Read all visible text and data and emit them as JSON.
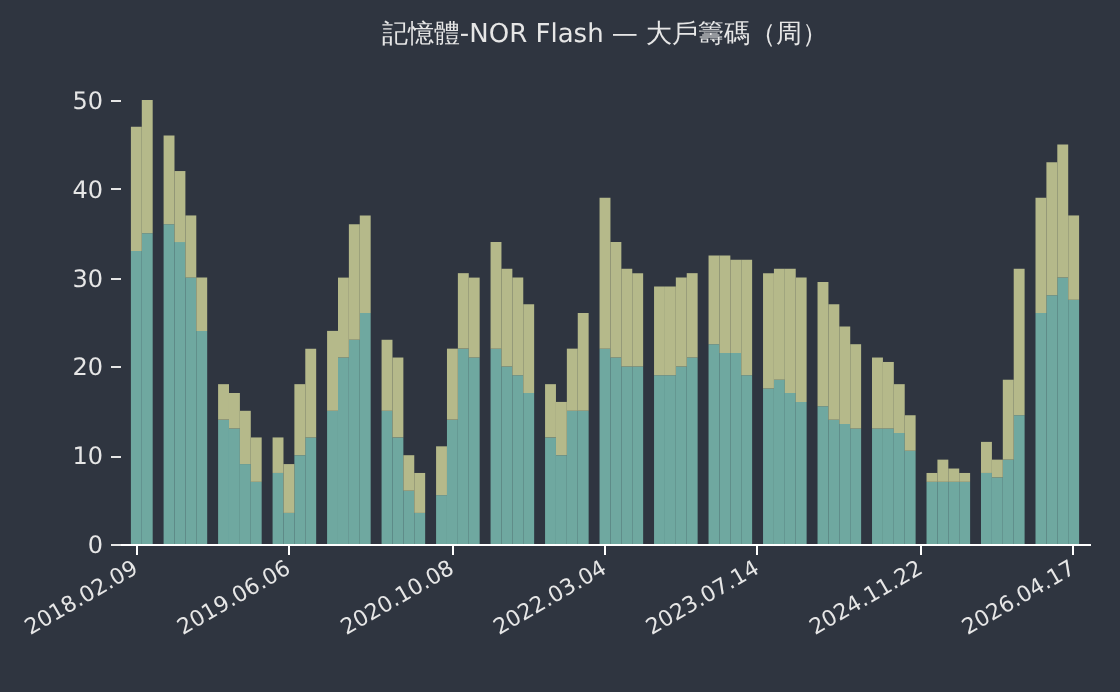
{
  "chart_data": {
    "type": "bar",
    "title": "記憶體-NOR Flash — 大戶籌碼（周）",
    "stacked": true,
    "categories": [
      "2018.02.09",
      null,
      null,
      null,
      null,
      null,
      null,
      null,
      null,
      null,
      null,
      null,
      null,
      null,
      "2019.06.06",
      null,
      null,
      null,
      null,
      null,
      null,
      null,
      null,
      null,
      null,
      null,
      null,
      null,
      null,
      "2020.10.08",
      null,
      null,
      null,
      null,
      null,
      null,
      null,
      null,
      null,
      null,
      null,
      null,
      null,
      "2022.03.04",
      null,
      null,
      null,
      null,
      null,
      null,
      null,
      null,
      null,
      null,
      null,
      null,
      null,
      "2023.07.14",
      null,
      null,
      null,
      null,
      null,
      null,
      null,
      null,
      null,
      null,
      null,
      null,
      null,
      null,
      "2024.11.22",
      null,
      null,
      null,
      null,
      null,
      null,
      null,
      null,
      null,
      null,
      null,
      null,
      null,
      "2026.04.17"
    ],
    "series": [
      {
        "color": "#6fa8a0",
        "values": [
          33,
          35,
          null,
          36,
          34,
          30,
          24,
          null,
          14,
          13,
          9,
          7,
          null,
          8,
          3.5,
          10,
          12,
          null,
          15,
          21,
          23,
          26,
          null,
          15,
          12,
          6,
          3.5,
          null,
          5.5,
          14,
          22,
          21,
          null,
          22,
          20,
          19,
          17,
          null,
          12,
          10,
          15,
          15,
          null,
          22,
          21,
          20,
          20,
          null,
          19,
          19,
          20,
          21,
          null,
          22.5,
          21.5,
          21.5,
          19,
          null,
          17.5,
          18.5,
          17,
          16,
          null,
          15.5,
          14,
          13.5,
          13,
          null,
          13,
          13,
          12.5,
          10.5,
          null,
          7,
          7,
          7,
          7,
          null,
          8,
          7.5,
          9.5,
          14.5,
          null,
          26,
          28,
          30,
          27.5
        ]
      },
      {
        "color": "#b5b98a",
        "values": [
          14,
          15,
          null,
          10,
          8,
          7,
          6,
          null,
          4,
          4,
          6,
          5,
          null,
          4,
          5.5,
          8,
          10,
          null,
          9,
          9,
          13,
          11,
          null,
          8,
          9,
          4,
          4.5,
          null,
          5.5,
          8,
          8.5,
          9,
          null,
          12,
          11,
          11,
          10,
          null,
          6,
          6,
          7,
          11,
          null,
          17,
          13,
          11,
          10.5,
          null,
          10,
          10,
          10,
          9.5,
          null,
          10,
          11,
          10.5,
          13,
          null,
          13,
          12.5,
          14,
          14,
          null,
          14,
          13,
          11,
          9.5,
          null,
          8,
          7.5,
          5.5,
          4,
          null,
          1,
          2.5,
          1.5,
          1,
          null,
          3.5,
          2,
          9,
          16.5,
          null,
          13,
          15,
          15,
          9.5
        ]
      }
    ],
    "ylim": [
      0,
      50
    ],
    "yticks": [
      0,
      10,
      20,
      30,
      40,
      50
    ],
    "grid": false
  }
}
